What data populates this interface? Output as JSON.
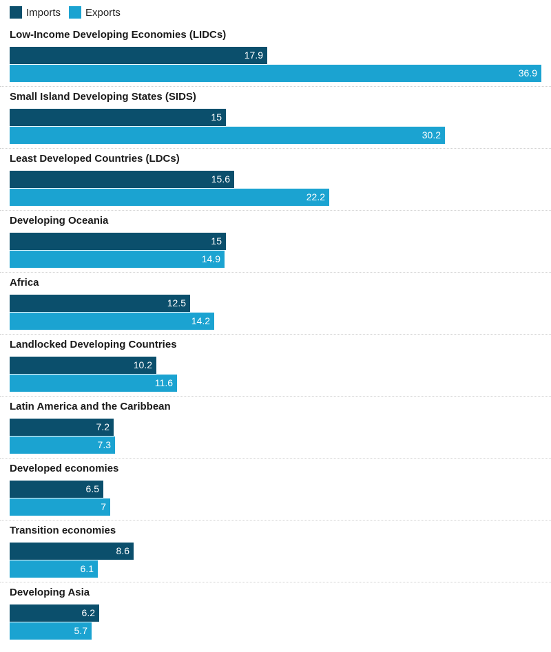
{
  "colors": {
    "imports": "#0b4f6c",
    "exports": "#1ba3d1"
  },
  "chart_data": {
    "type": "bar",
    "orientation": "horizontal",
    "categories": [
      "Low-Income Developing Economies (LIDCs)",
      "Small Island Developing States (SIDS)",
      "Least Developed Countries (LDCs)",
      "Developing Oceania",
      "Africa",
      "Landlocked Developing Countries",
      "Latin America and the Caribbean",
      "Developed economies",
      "Transition economies",
      "Developing Asia"
    ],
    "series": [
      {
        "name": "Imports",
        "values": [
          17.9,
          15,
          15.6,
          15,
          12.5,
          10.2,
          7.2,
          6.5,
          8.6,
          6.2
        ]
      },
      {
        "name": "Exports",
        "values": [
          36.9,
          30.2,
          22.2,
          14.9,
          14.2,
          11.6,
          7.3,
          7,
          6.1,
          5.7
        ]
      }
    ],
    "xlim": [
      0,
      36.9
    ],
    "legend_position": "top-left",
    "grid": false,
    "data_labels": true
  }
}
